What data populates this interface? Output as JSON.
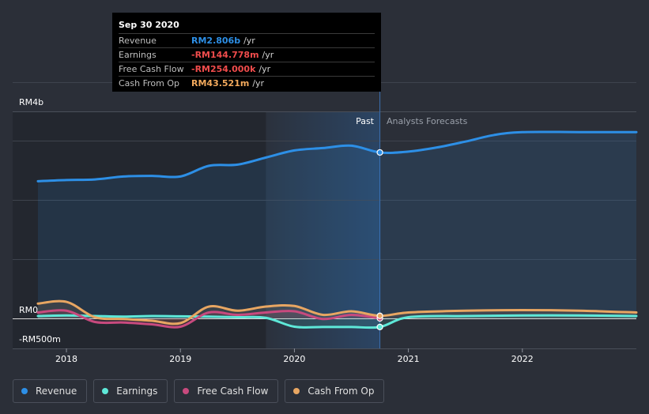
{
  "tooltip": {
    "date": "Sep 30 2020",
    "rows": [
      {
        "label": "Revenue",
        "value": "RM2.806b",
        "unit": "/yr",
        "color": "#2d8fe6"
      },
      {
        "label": "Earnings",
        "value": "-RM144.778m",
        "unit": "/yr",
        "color": "#f04c4c"
      },
      {
        "label": "Free Cash Flow",
        "value": "-RM254.000k",
        "unit": "/yr",
        "color": "#f04c4c"
      },
      {
        "label": "Cash From Op",
        "value": "RM43.521m",
        "unit": "/yr",
        "color": "#f2a95c"
      }
    ]
  },
  "section_labels": {
    "past": "Past",
    "forecast": "Analysts Forecasts"
  },
  "legend": [
    {
      "label": "Revenue",
      "color": "#2d8fe6"
    },
    {
      "label": "Earnings",
      "color": "#5ee8d8"
    },
    {
      "label": "Free Cash Flow",
      "color": "#c84a7e"
    },
    {
      "label": "Cash From Op",
      "color": "#e8a662"
    }
  ],
  "chart_data": {
    "type": "line",
    "y_tick_labels": [
      "RM4b",
      "RM0",
      "-RM500m"
    ],
    "x_tick_labels": [
      "2018",
      "2019",
      "2020",
      "2021",
      "2022"
    ],
    "ylim": [
      -500,
      4000
    ],
    "xlim": [
      2017.5,
      2023.0
    ],
    "highlight_x": 2020.75,
    "past_shade_start": 2019.75,
    "grid": true,
    "series": [
      {
        "name": "Revenue",
        "color": "#2d8fe6",
        "points": [
          [
            2017.75,
            2320
          ],
          [
            2018.0,
            2340
          ],
          [
            2018.25,
            2350
          ],
          [
            2018.5,
            2400
          ],
          [
            2018.75,
            2410
          ],
          [
            2019.0,
            2400
          ],
          [
            2019.25,
            2580
          ],
          [
            2019.5,
            2600
          ],
          [
            2019.75,
            2720
          ],
          [
            2020.0,
            2840
          ],
          [
            2020.25,
            2880
          ],
          [
            2020.5,
            2920
          ],
          [
            2020.75,
            2806
          ],
          [
            2021.0,
            2820
          ],
          [
            2021.25,
            2890
          ],
          [
            2021.5,
            2990
          ],
          [
            2021.75,
            3100
          ],
          [
            2022.0,
            3150
          ],
          [
            2022.5,
            3150
          ],
          [
            2023.0,
            3150
          ]
        ]
      },
      {
        "name": "Earnings",
        "color": "#5ee8d8",
        "points": [
          [
            2017.75,
            40
          ],
          [
            2018.0,
            50
          ],
          [
            2018.25,
            40
          ],
          [
            2018.5,
            30
          ],
          [
            2018.75,
            40
          ],
          [
            2019.0,
            35
          ],
          [
            2019.25,
            30
          ],
          [
            2019.5,
            20
          ],
          [
            2019.75,
            10
          ],
          [
            2020.0,
            -140
          ],
          [
            2020.25,
            -145
          ],
          [
            2020.5,
            -145
          ],
          [
            2020.75,
            -145
          ],
          [
            2021.0,
            20
          ],
          [
            2021.5,
            40
          ],
          [
            2022.0,
            50
          ],
          [
            2022.5,
            50
          ],
          [
            2023.0,
            40
          ]
        ]
      },
      {
        "name": "Free Cash Flow",
        "color": "#c84a7e",
        "points": [
          [
            2017.75,
            100
          ],
          [
            2018.0,
            130
          ],
          [
            2018.25,
            -60
          ],
          [
            2018.5,
            -70
          ],
          [
            2018.75,
            -100
          ],
          [
            2019.0,
            -140
          ],
          [
            2019.25,
            100
          ],
          [
            2019.5,
            60
          ],
          [
            2019.75,
            100
          ],
          [
            2020.0,
            120
          ],
          [
            2020.25,
            -10
          ],
          [
            2020.5,
            60
          ],
          [
            2020.75,
            -0.25
          ]
        ]
      },
      {
        "name": "Cash From Op",
        "color": "#e8a662",
        "points": [
          [
            2017.75,
            250
          ],
          [
            2018.0,
            280
          ],
          [
            2018.25,
            20
          ],
          [
            2018.5,
            -10
          ],
          [
            2018.75,
            -40
          ],
          [
            2019.0,
            -80
          ],
          [
            2019.25,
            200
          ],
          [
            2019.5,
            130
          ],
          [
            2019.75,
            200
          ],
          [
            2020.0,
            210
          ],
          [
            2020.25,
            60
          ],
          [
            2020.5,
            120
          ],
          [
            2020.75,
            43.5
          ],
          [
            2021.0,
            100
          ],
          [
            2021.5,
            130
          ],
          [
            2022.0,
            140
          ],
          [
            2022.5,
            130
          ],
          [
            2023.0,
            100
          ]
        ]
      }
    ]
  }
}
